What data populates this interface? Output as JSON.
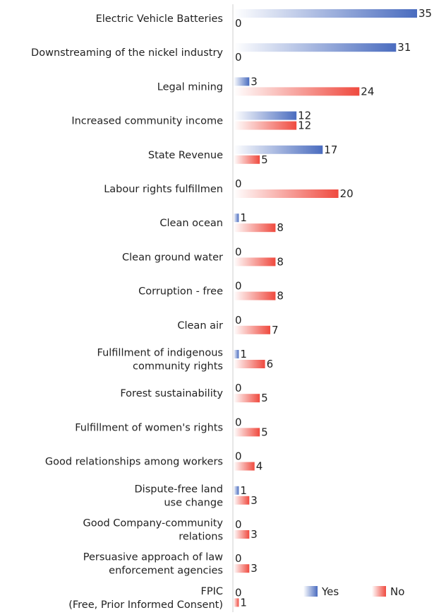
{
  "chart_data": {
    "type": "bar",
    "orientation": "horizontal",
    "categories": [
      "Electric Vehicle Batteries",
      "Downstreaming of the nickel industry",
      "Legal mining",
      "Increased community income",
      "State Revenue",
      "Labour rights fulfillmen",
      "Clean ocean",
      "Clean ground water",
      "Corruption - free",
      "Clean air",
      "Fulfillment of indigenous\ncommunity rights",
      "Forest sustainability",
      "Fulfillment of women's rights",
      "Good relationships among workers",
      "Dispute-free land\nuse change",
      "Good Company-community\nrelations",
      "Persuasive approach of law\nenforcement agencies",
      "FPIC\n(Free, Prior Informed Consent)"
    ],
    "series": [
      {
        "name": "Yes",
        "color": "#4a6cbf",
        "values": [
          35,
          31,
          3,
          12,
          17,
          0,
          1,
          0,
          0,
          0,
          1,
          0,
          0,
          0,
          1,
          0,
          0,
          0
        ]
      },
      {
        "name": "No",
        "color": "#ef4a3f",
        "values": [
          0,
          0,
          24,
          12,
          5,
          20,
          8,
          8,
          8,
          7,
          6,
          5,
          5,
          4,
          3,
          3,
          3,
          1
        ]
      }
    ],
    "xlim": [
      0,
      35
    ],
    "grid": false,
    "legend_position": "bottom-right"
  }
}
